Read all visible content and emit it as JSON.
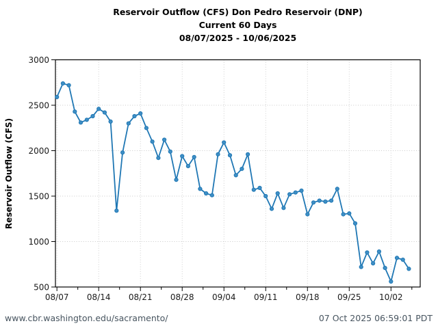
{
  "header": {
    "title_line1": "Reservoir Outflow (CFS) Don Pedro Reservoir (DNP)",
    "title_line2": "Current 60 Days",
    "title_line3": "08/07/2025 - 10/06/2025"
  },
  "footer": {
    "url": "www.cbr.washington.edu/sacramento/",
    "timestamp": "07 Oct 2025 06:59:01 PDT"
  },
  "colors": {
    "line": "#1f77b4",
    "marker_fill": "#3f8fc5",
    "marker_edge": "#1f77b4",
    "grid": "#c9c9c9",
    "axis": "#000000",
    "tick_label": "#1a1a1a",
    "footer_text": "#47545f"
  },
  "chart_data": {
    "type": "line",
    "title": "Reservoir Outflow (CFS) Don Pedro Reservoir (DNP)",
    "subtitle": "Current 60 Days",
    "date_range": "08/07/2025 - 10/06/2025",
    "xlabel": "",
    "ylabel": "Reservoir Outflow (CFS)",
    "ylim": [
      500,
      3000
    ],
    "yticks": [
      500,
      1000,
      1500,
      2000,
      2500,
      3000
    ],
    "xtick_labels": [
      "08/07",
      "08/14",
      "08/21",
      "08/28",
      "09/04",
      "09/11",
      "09/18",
      "09/25",
      "10/02"
    ],
    "xtick_indices": [
      0,
      7,
      14,
      21,
      28,
      35,
      42,
      49,
      56
    ],
    "minor_xtick_offset": 3.5,
    "grid": true,
    "legend_position": "none",
    "x": [
      "08/07",
      "08/08",
      "08/09",
      "08/10",
      "08/11",
      "08/12",
      "08/13",
      "08/14",
      "08/15",
      "08/16",
      "08/17",
      "08/18",
      "08/19",
      "08/20",
      "08/21",
      "08/22",
      "08/23",
      "08/24",
      "08/25",
      "08/26",
      "08/27",
      "08/28",
      "08/29",
      "08/30",
      "08/31",
      "09/01",
      "09/02",
      "09/03",
      "09/04",
      "09/05",
      "09/06",
      "09/07",
      "09/08",
      "09/09",
      "09/10",
      "09/11",
      "09/12",
      "09/13",
      "09/14",
      "09/15",
      "09/16",
      "09/17",
      "09/18",
      "09/19",
      "09/20",
      "09/21",
      "09/22",
      "09/23",
      "09/24",
      "09/25",
      "09/26",
      "09/27",
      "09/28",
      "09/29",
      "09/30",
      "10/01",
      "10/02",
      "10/03",
      "10/04",
      "10/05"
    ],
    "values": [
      2590,
      2740,
      2720,
      2430,
      2310,
      2340,
      2380,
      2460,
      2420,
      2320,
      1340,
      1980,
      2300,
      2380,
      2410,
      2250,
      2100,
      1920,
      2120,
      1990,
      1680,
      1940,
      1830,
      1930,
      1580,
      1530,
      1510,
      1960,
      2090,
      1950,
      1730,
      1800,
      1960,
      1570,
      1590,
      1500,
      1360,
      1530,
      1370,
      1520,
      1540,
      1560,
      1300,
      1430,
      1450,
      1440,
      1450,
      1580,
      1300,
      1310,
      1200,
      720,
      880,
      760,
      890,
      710,
      560,
      820,
      800,
      700
    ]
  }
}
